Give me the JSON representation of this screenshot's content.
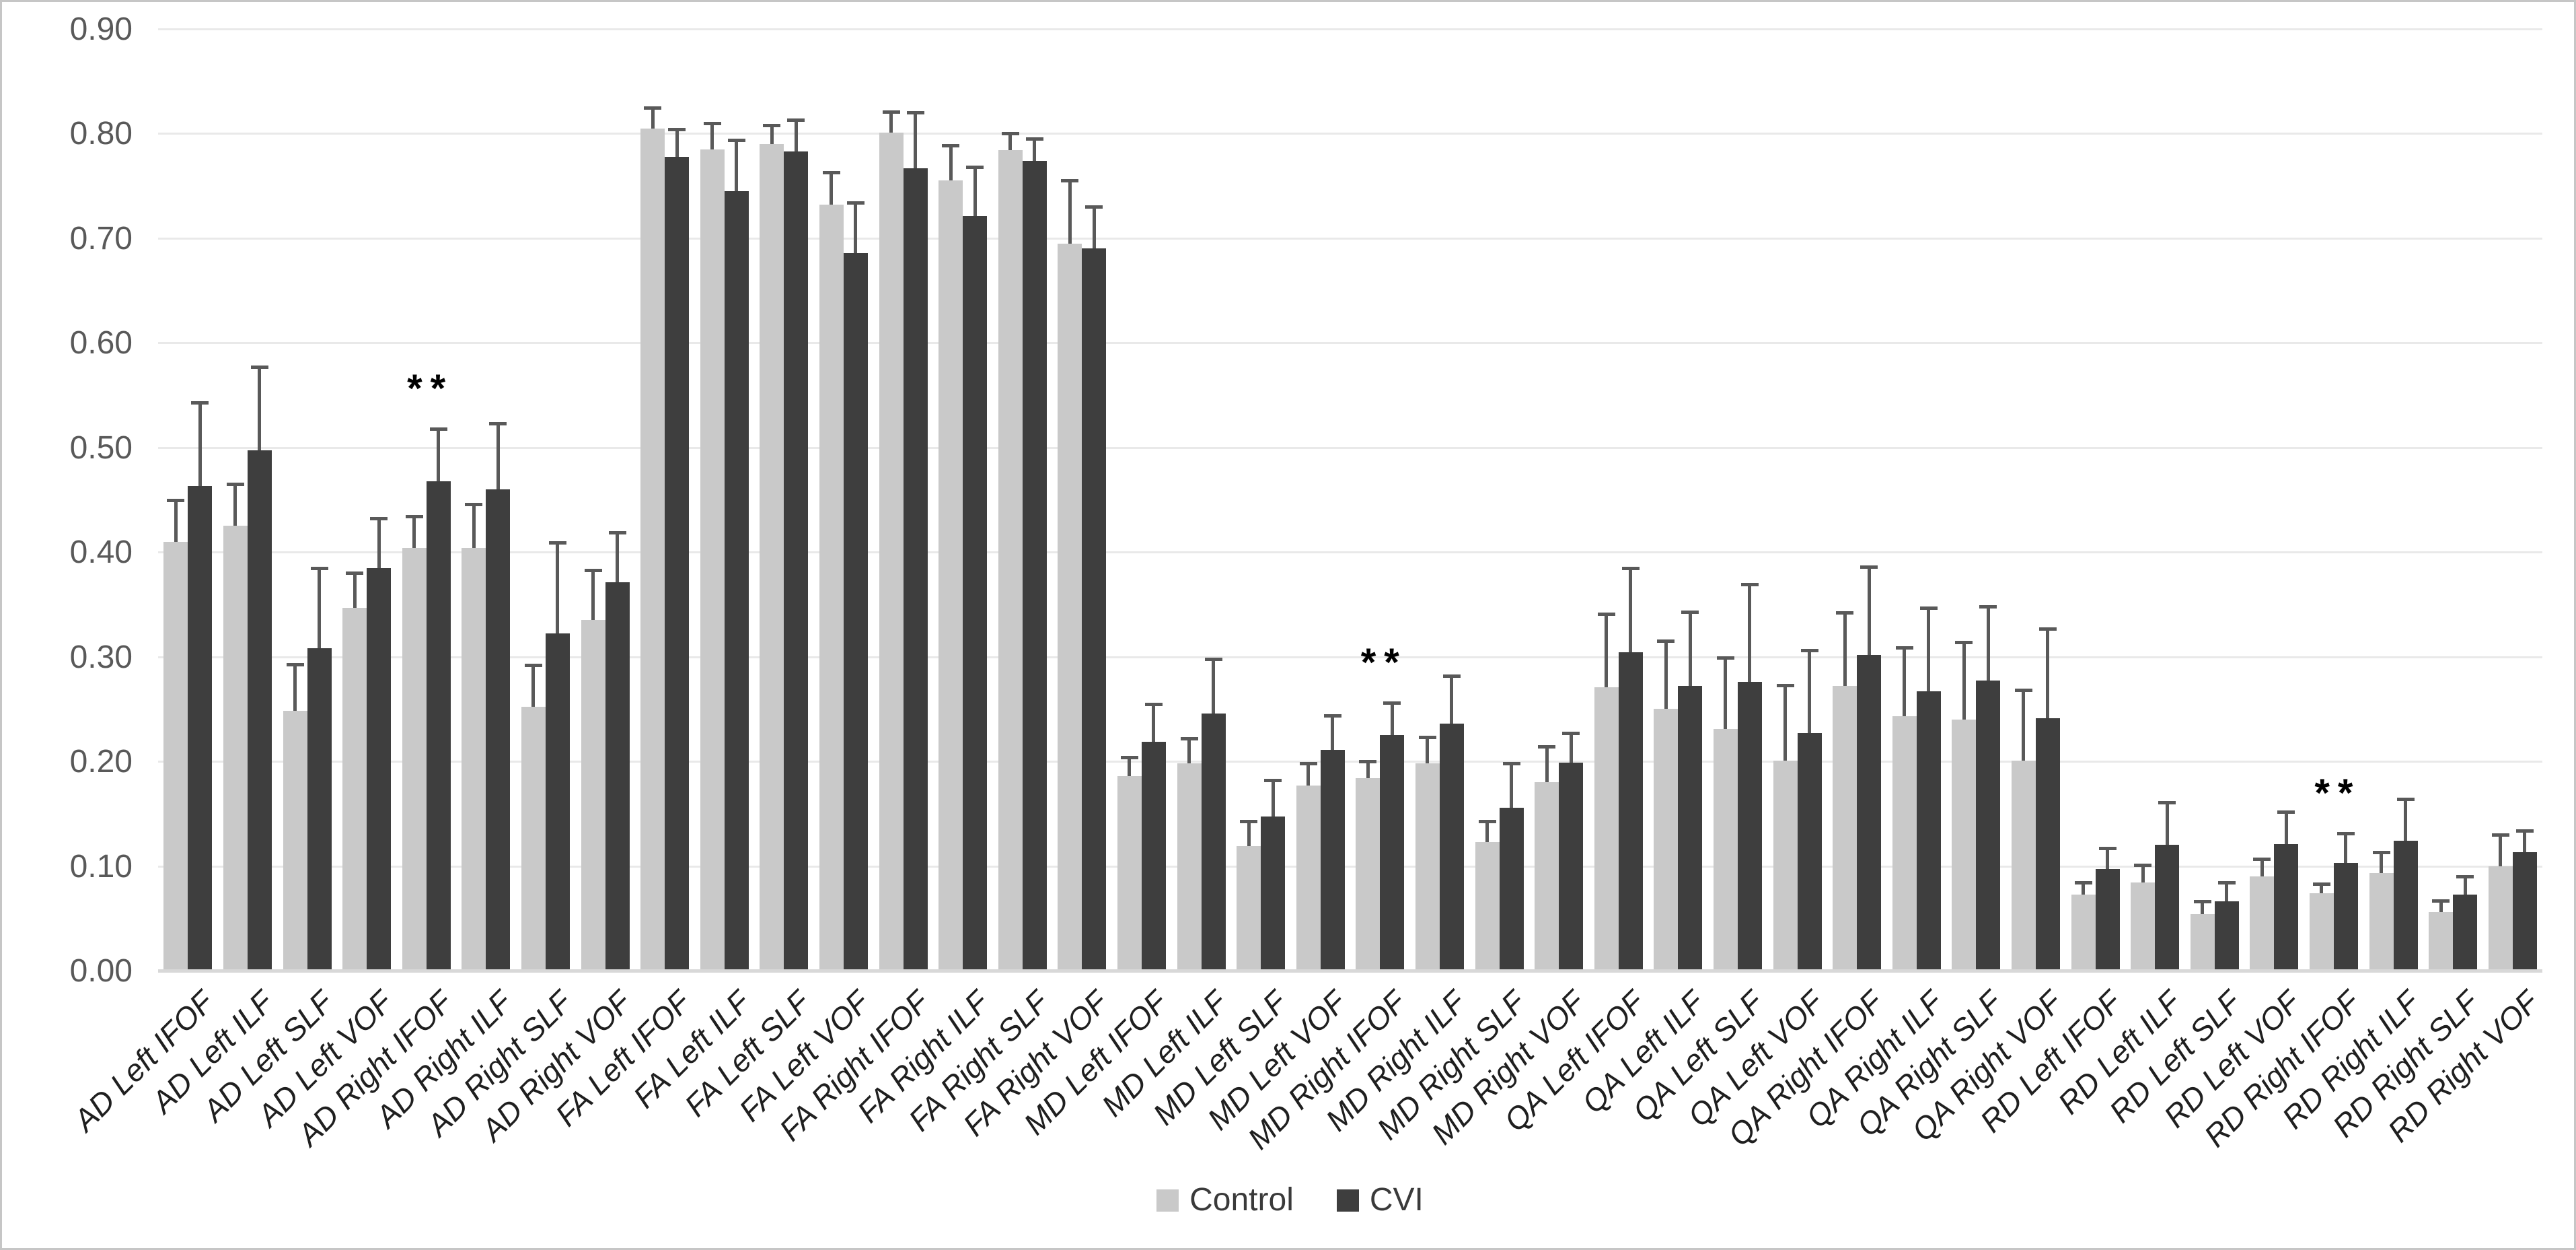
{
  "chart_data": {
    "type": "bar",
    "title": "",
    "xlabel": "",
    "ylabel": "",
    "ylim": [
      0,
      0.9
    ],
    "ytick_step": 0.1,
    "ytick_labels": [
      "0.00",
      "0.10",
      "0.20",
      "0.30",
      "0.40",
      "0.50",
      "0.60",
      "0.70",
      "0.80",
      "0.90"
    ],
    "grid": true,
    "legend_position": "bottom",
    "categories": [
      "AD Left IFOF",
      "AD Left ILF",
      "AD Left SLF",
      "AD Left VOF",
      "AD Right IFOF",
      "AD Right ILF",
      "AD Right SLF",
      "AD Right VOF",
      "FA Left IFOF",
      "FA Left ILF",
      "FA Left SLF",
      "FA Left VOF",
      "FA Right IFOF",
      "FA Right ILF",
      "FA Right SLF",
      "FA Right VOF",
      "MD Left IFOF",
      "MD Left ILF",
      "MD Left SLF",
      "MD Left VOF",
      "MD Right IFOF",
      "MD Right ILF",
      "MD Right SLF",
      "MD Right VOF",
      "QA Left IFOF",
      "QA Left ILF",
      "QA Left SLF",
      "QA Left VOF",
      "QA Right IFOF",
      "QA Right ILF",
      "QA Right SLF",
      "QA Right VOF",
      "RD Left IFOF",
      "RD Left ILF",
      "RD Left SLF",
      "RD Left VOF",
      "RD Right IFOF",
      "RD Right ILF",
      "RD Right SLF",
      "RD Right VOF"
    ],
    "series": [
      {
        "name": "Control",
        "color": "#c9c9c9",
        "values": [
          0.41,
          0.425,
          0.248,
          0.347,
          0.404,
          0.404,
          0.252,
          0.335,
          0.805,
          0.785,
          0.79,
          0.732,
          0.801,
          0.755,
          0.784,
          0.695,
          0.186,
          0.198,
          0.119,
          0.177,
          0.184,
          0.198,
          0.123,
          0.18,
          0.271,
          0.25,
          0.231,
          0.201,
          0.272,
          0.243,
          0.24,
          0.201,
          0.073,
          0.084,
          0.054,
          0.09,
          0.074,
          0.093,
          0.056,
          0.1
        ],
        "errors_plus": [
          0.04,
          0.04,
          0.045,
          0.033,
          0.03,
          0.042,
          0.04,
          0.048,
          0.02,
          0.025,
          0.018,
          0.031,
          0.02,
          0.034,
          0.016,
          0.06,
          0.018,
          0.024,
          0.024,
          0.021,
          0.016,
          0.025,
          0.02,
          0.034,
          0.07,
          0.065,
          0.068,
          0.072,
          0.07,
          0.066,
          0.074,
          0.067,
          0.011,
          0.017,
          0.012,
          0.017,
          0.009,
          0.02,
          0.011,
          0.03
        ]
      },
      {
        "name": "CVI",
        "color": "#3e3e3e",
        "values": [
          0.463,
          0.497,
          0.308,
          0.385,
          0.468,
          0.46,
          0.322,
          0.371,
          0.778,
          0.745,
          0.783,
          0.686,
          0.767,
          0.721,
          0.774,
          0.69,
          0.219,
          0.246,
          0.147,
          0.211,
          0.225,
          0.236,
          0.156,
          0.199,
          0.304,
          0.272,
          0.276,
          0.227,
          0.302,
          0.267,
          0.277,
          0.241,
          0.097,
          0.12,
          0.066,
          0.121,
          0.103,
          0.124,
          0.073,
          0.113
        ],
        "errors_plus": [
          0.08,
          0.08,
          0.077,
          0.047,
          0.05,
          0.063,
          0.087,
          0.048,
          0.026,
          0.049,
          0.03,
          0.048,
          0.053,
          0.047,
          0.021,
          0.04,
          0.036,
          0.052,
          0.035,
          0.033,
          0.031,
          0.046,
          0.042,
          0.028,
          0.081,
          0.071,
          0.093,
          0.079,
          0.084,
          0.08,
          0.071,
          0.086,
          0.02,
          0.041,
          0.018,
          0.031,
          0.028,
          0.04,
          0.017,
          0.021
        ]
      }
    ],
    "significance_markers": [
      {
        "category_index": 4,
        "category": "AD Right IFOF",
        "label": "**"
      },
      {
        "category_index": 20,
        "category": "MD Right IFOF",
        "label": "**"
      },
      {
        "category_index": 36,
        "category": "RD Right IFOF",
        "label": "**"
      }
    ],
    "error_bar_color": "#595959",
    "gridline_color": "#e9e9e9",
    "axis_line_color": "#d8d8d8"
  },
  "legend": {
    "control_label": "Control",
    "cvi_label": "CVI"
  }
}
